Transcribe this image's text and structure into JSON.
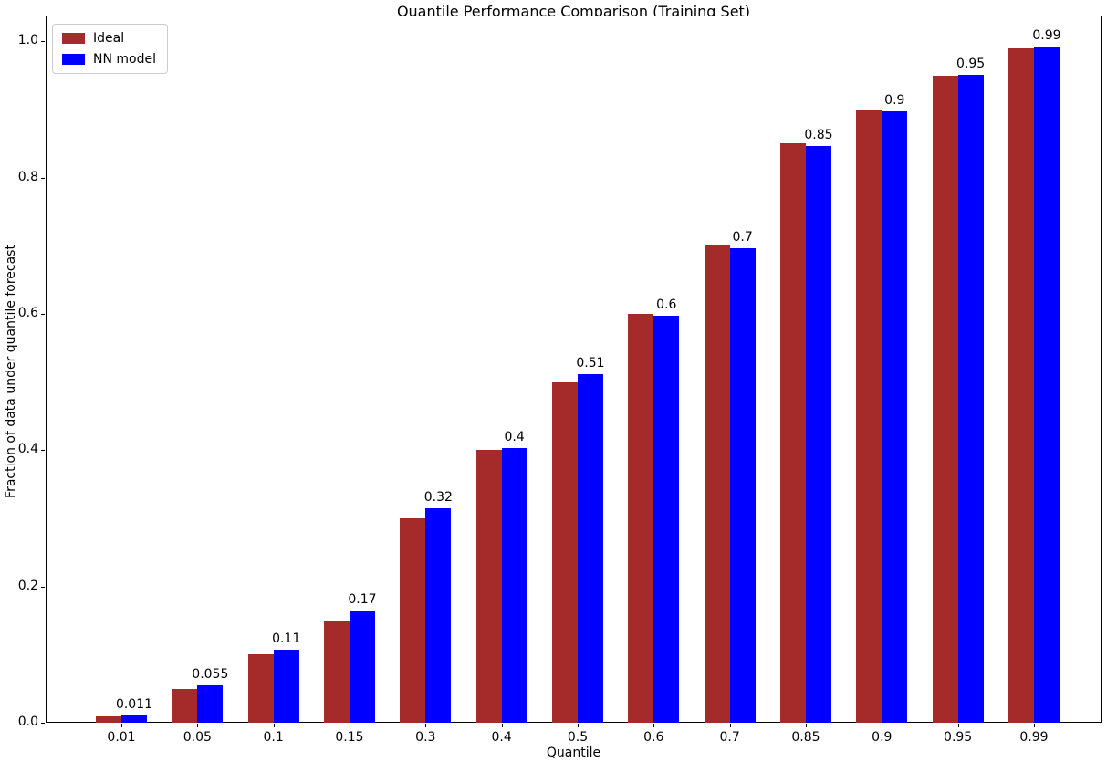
{
  "figure": {
    "title": "Quantile Performance Comparison (Training Set)",
    "xlabel": "Quantile",
    "ylabel": "Fraction of data under quantile forecast"
  },
  "legend": {
    "entries": [
      {
        "label": "Ideal",
        "color": "#a52a2a"
      },
      {
        "label": "NN model",
        "color": "#0000ff"
      }
    ],
    "position": "upper left"
  },
  "chart_data": {
    "type": "bar",
    "title": "Quantile Performance Comparison (Training Set)",
    "xlabel": "Quantile",
    "ylabel": "Fraction of data under quantile forecast",
    "categories": [
      "0.01",
      "0.05",
      "0.1",
      "0.15",
      "0.3",
      "0.4",
      "0.5",
      "0.6",
      "0.7",
      "0.85",
      "0.9",
      "0.95",
      "0.99"
    ],
    "series": [
      {
        "name": "Ideal",
        "color": "#a52a2a",
        "values": [
          0.01,
          0.05,
          0.1,
          0.15,
          0.3,
          0.4,
          0.5,
          0.6,
          0.7,
          0.85,
          0.9,
          0.95,
          0.99
        ]
      },
      {
        "name": "NN model",
        "color": "#0000ff",
        "values": [
          0.011,
          0.055,
          0.107,
          0.165,
          0.315,
          0.403,
          0.512,
          0.597,
          0.697,
          0.846,
          0.897,
          0.951,
          0.993
        ]
      }
    ],
    "bar_labels": [
      "0.011",
      "0.055",
      "0.11",
      "0.17",
      "0.32",
      "0.4",
      "0.51",
      "0.6",
      "0.7",
      "0.85",
      "0.9",
      "0.95",
      "0.99"
    ],
    "bar_label_series": "NN model",
    "yticks": [
      "0.0",
      "0.2",
      "0.4",
      "0.6",
      "0.8",
      "1.0"
    ],
    "ytick_values": [
      0.0,
      0.2,
      0.4,
      0.6,
      0.8,
      1.0
    ],
    "ylim": [
      0,
      1.038
    ],
    "legend_position": "upper left",
    "grid": false
  }
}
